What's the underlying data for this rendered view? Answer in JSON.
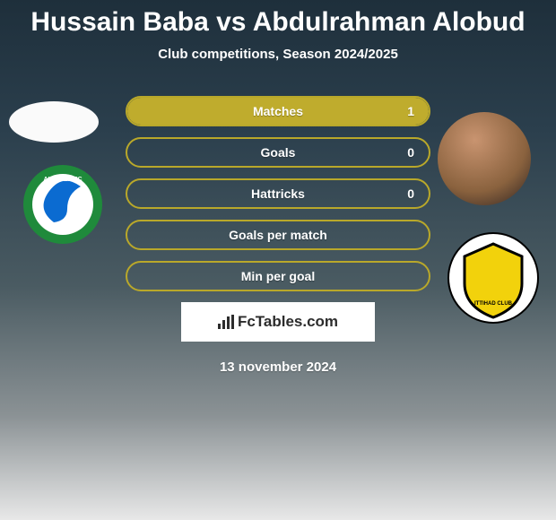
{
  "title": "Hussain Baba vs Abdulrahman Alobud",
  "subtitle": "Club competitions, Season 2024/2025",
  "date": "13 november 2024",
  "brand": "FcTables.com",
  "colors": {
    "accent": "#b9a82a",
    "accent_light": "#c7b83f",
    "accent_fill": "#bfac2d",
    "text": "#ffffff"
  },
  "stats": [
    {
      "label": "Matches",
      "right_value": "1",
      "right_fill_pct": 100
    },
    {
      "label": "Goals",
      "right_value": "0",
      "right_fill_pct": 0
    },
    {
      "label": "Hattricks",
      "right_value": "0",
      "right_fill_pct": 0
    },
    {
      "label": "Goals per match",
      "right_value": "",
      "right_fill_pct": 0
    },
    {
      "label": "Min per goal",
      "right_value": "",
      "right_fill_pct": 0
    }
  ],
  "club_left": {
    "name": "Al Fateh FC",
    "ring_color": "#1f8a3b",
    "inner_color": "#ffffff",
    "accent_color": "#0b6bd1"
  },
  "club_right": {
    "name": "Al Ittihad",
    "bg_color": "#ffffff",
    "shield_color": "#f2d20c",
    "shield_stroke": "#000000"
  }
}
